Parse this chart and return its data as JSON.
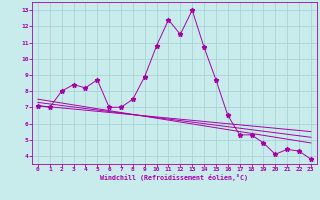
{
  "xlabel": "Windchill (Refroidissement éolien,°C)",
  "ylabel": "",
  "background_color": "#c8ecec",
  "grid_color": "#aad4d4",
  "line_color": "#aa00aa",
  "xlim": [
    -0.5,
    23.5
  ],
  "ylim": [
    3.5,
    13.5
  ],
  "xticks": [
    0,
    1,
    2,
    3,
    4,
    5,
    6,
    7,
    8,
    9,
    10,
    11,
    12,
    13,
    14,
    15,
    16,
    17,
    18,
    19,
    20,
    21,
    22,
    23
  ],
  "yticks": [
    4,
    5,
    6,
    7,
    8,
    9,
    10,
    11,
    12,
    13
  ],
  "main_line": {
    "x": [
      0,
      1,
      2,
      3,
      4,
      5,
      6,
      7,
      8,
      9,
      10,
      11,
      12,
      13,
      14,
      15,
      16,
      17,
      18,
      19,
      20,
      21,
      22,
      23
    ],
    "y": [
      7.1,
      7.0,
      8.0,
      8.4,
      8.2,
      8.7,
      7.0,
      7.0,
      7.5,
      8.9,
      10.8,
      12.4,
      11.5,
      13.0,
      10.7,
      8.7,
      6.5,
      5.3,
      5.3,
      4.8,
      4.1,
      4.4,
      4.3,
      3.8
    ]
  },
  "trend_lines": [
    {
      "x": [
        0,
        23
      ],
      "y": [
        7.5,
        4.8
      ]
    },
    {
      "x": [
        0,
        23
      ],
      "y": [
        7.3,
        5.15
      ]
    },
    {
      "x": [
        0,
        23
      ],
      "y": [
        7.1,
        5.5
      ]
    }
  ]
}
